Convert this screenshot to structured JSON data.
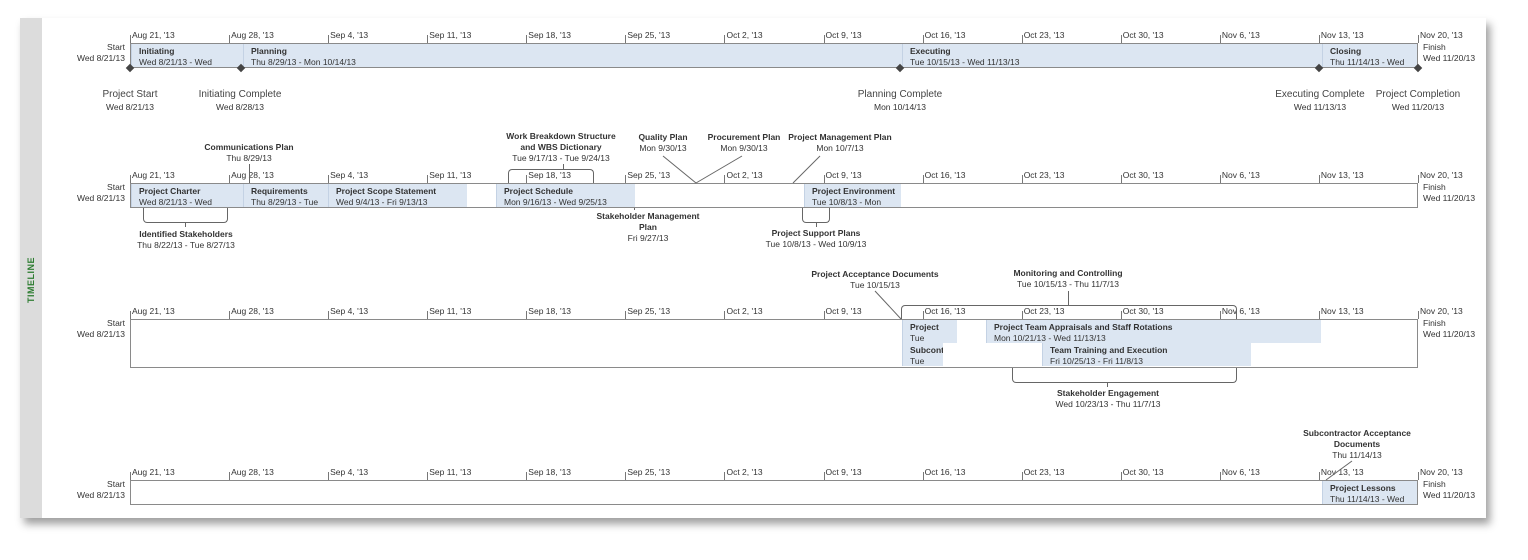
{
  "sidebar": {
    "label": "TIMELINE"
  },
  "edges": {
    "start_label": "Start",
    "start_date": "Wed 8/21/13",
    "finish_label": "Finish",
    "finish_date": "Wed 11/20/13"
  },
  "ticks": [
    "Aug 21, '13",
    "Aug 28, '13",
    "Sep 4, '13",
    "Sep 11, '13",
    "Sep 18, '13",
    "Sep 25, '13",
    "Oct 2, '13",
    "Oct 9, '13",
    "Oct 16, '13",
    "Oct 23, '13",
    "Oct 30, '13",
    "Nov 6, '13",
    "Nov 13, '13",
    "Nov 20, '13"
  ],
  "timelines": [
    {
      "tasks": [
        {
          "name": "Initiating",
          "dates": "Wed 8/21/13 - Wed"
        },
        {
          "name": "Planning",
          "dates": "Thu 8/29/13 - Mon 10/14/13"
        },
        {
          "name": "Executing",
          "dates": "Tue 10/15/13 - Wed 11/13/13"
        },
        {
          "name": "Closing",
          "dates": "Thu 11/14/13 - Wed"
        }
      ],
      "milestones": [
        {
          "name": "Project Start",
          "date": "Wed 8/21/13"
        },
        {
          "name": "Initiating Complete",
          "date": "Wed 8/28/13"
        },
        {
          "name": "Planning Complete",
          "date": "Mon 10/14/13"
        },
        {
          "name": "Executing Complete",
          "date": "Wed 11/13/13"
        },
        {
          "name": "Project Completion",
          "date": "Wed 11/20/13"
        }
      ]
    },
    {
      "tasks": [
        {
          "name": "Project Charter",
          "dates": "Wed 8/21/13 - Wed"
        },
        {
          "name": "Requirements",
          "dates": "Thu 8/29/13 - Tue"
        },
        {
          "name": "Project Scope Statement",
          "dates": "Wed 9/4/13 - Fri 9/13/13"
        },
        {
          "name": "Project Schedule",
          "dates": "Mon 9/16/13 - Wed 9/25/13"
        },
        {
          "name": "Project Environment",
          "dates": "Tue 10/8/13 - Mon"
        }
      ],
      "callouts": [
        {
          "name": "Communications Plan",
          "date": "Thu 8/29/13"
        },
        {
          "name": "Work Breakdown Structure and WBS Dictionary",
          "date": "Tue 9/17/13 - Tue 9/24/13"
        },
        {
          "name": "Quality Plan",
          "date": "Mon 9/30/13"
        },
        {
          "name": "Procurement Plan",
          "date": "Mon 9/30/13"
        },
        {
          "name": "Project Management Plan",
          "date": "Mon 10/7/13"
        },
        {
          "name": "Identified Stakeholders",
          "date": "Thu 8/22/13 - Tue 8/27/13"
        },
        {
          "name": "Stakeholder Management Plan",
          "date": "Fri 9/27/13"
        },
        {
          "name": "Project Support Plans",
          "date": "Tue 10/8/13 - Wed 10/9/13"
        }
      ]
    },
    {
      "tasks": [
        {
          "name": "Project",
          "dates": "Tue"
        },
        {
          "name": "Project Team Appraisals and Staff Rotations",
          "dates": "Mon 10/21/13 - Wed 11/13/13"
        },
        {
          "name": "Subcont",
          "dates": "Tue"
        },
        {
          "name": "Team Training and Execution",
          "dates": "Fri 10/25/13 - Fri 11/8/13"
        }
      ],
      "callouts": [
        {
          "name": "Project Acceptance Documents",
          "date": "Tue 10/15/13"
        },
        {
          "name": "Monitoring and Controlling",
          "date": "Tue 10/15/13 - Thu 11/7/13"
        },
        {
          "name": "Stakeholder Engagement",
          "date": "Wed 10/23/13 - Thu 11/7/13"
        }
      ]
    },
    {
      "tasks": [
        {
          "name": "Project Lessons",
          "dates": "Thu 11/14/13 - Wed"
        }
      ],
      "callouts": [
        {
          "name": "Subcontractor Acceptance Documents",
          "date": "Thu 11/14/13"
        }
      ]
    }
  ]
}
